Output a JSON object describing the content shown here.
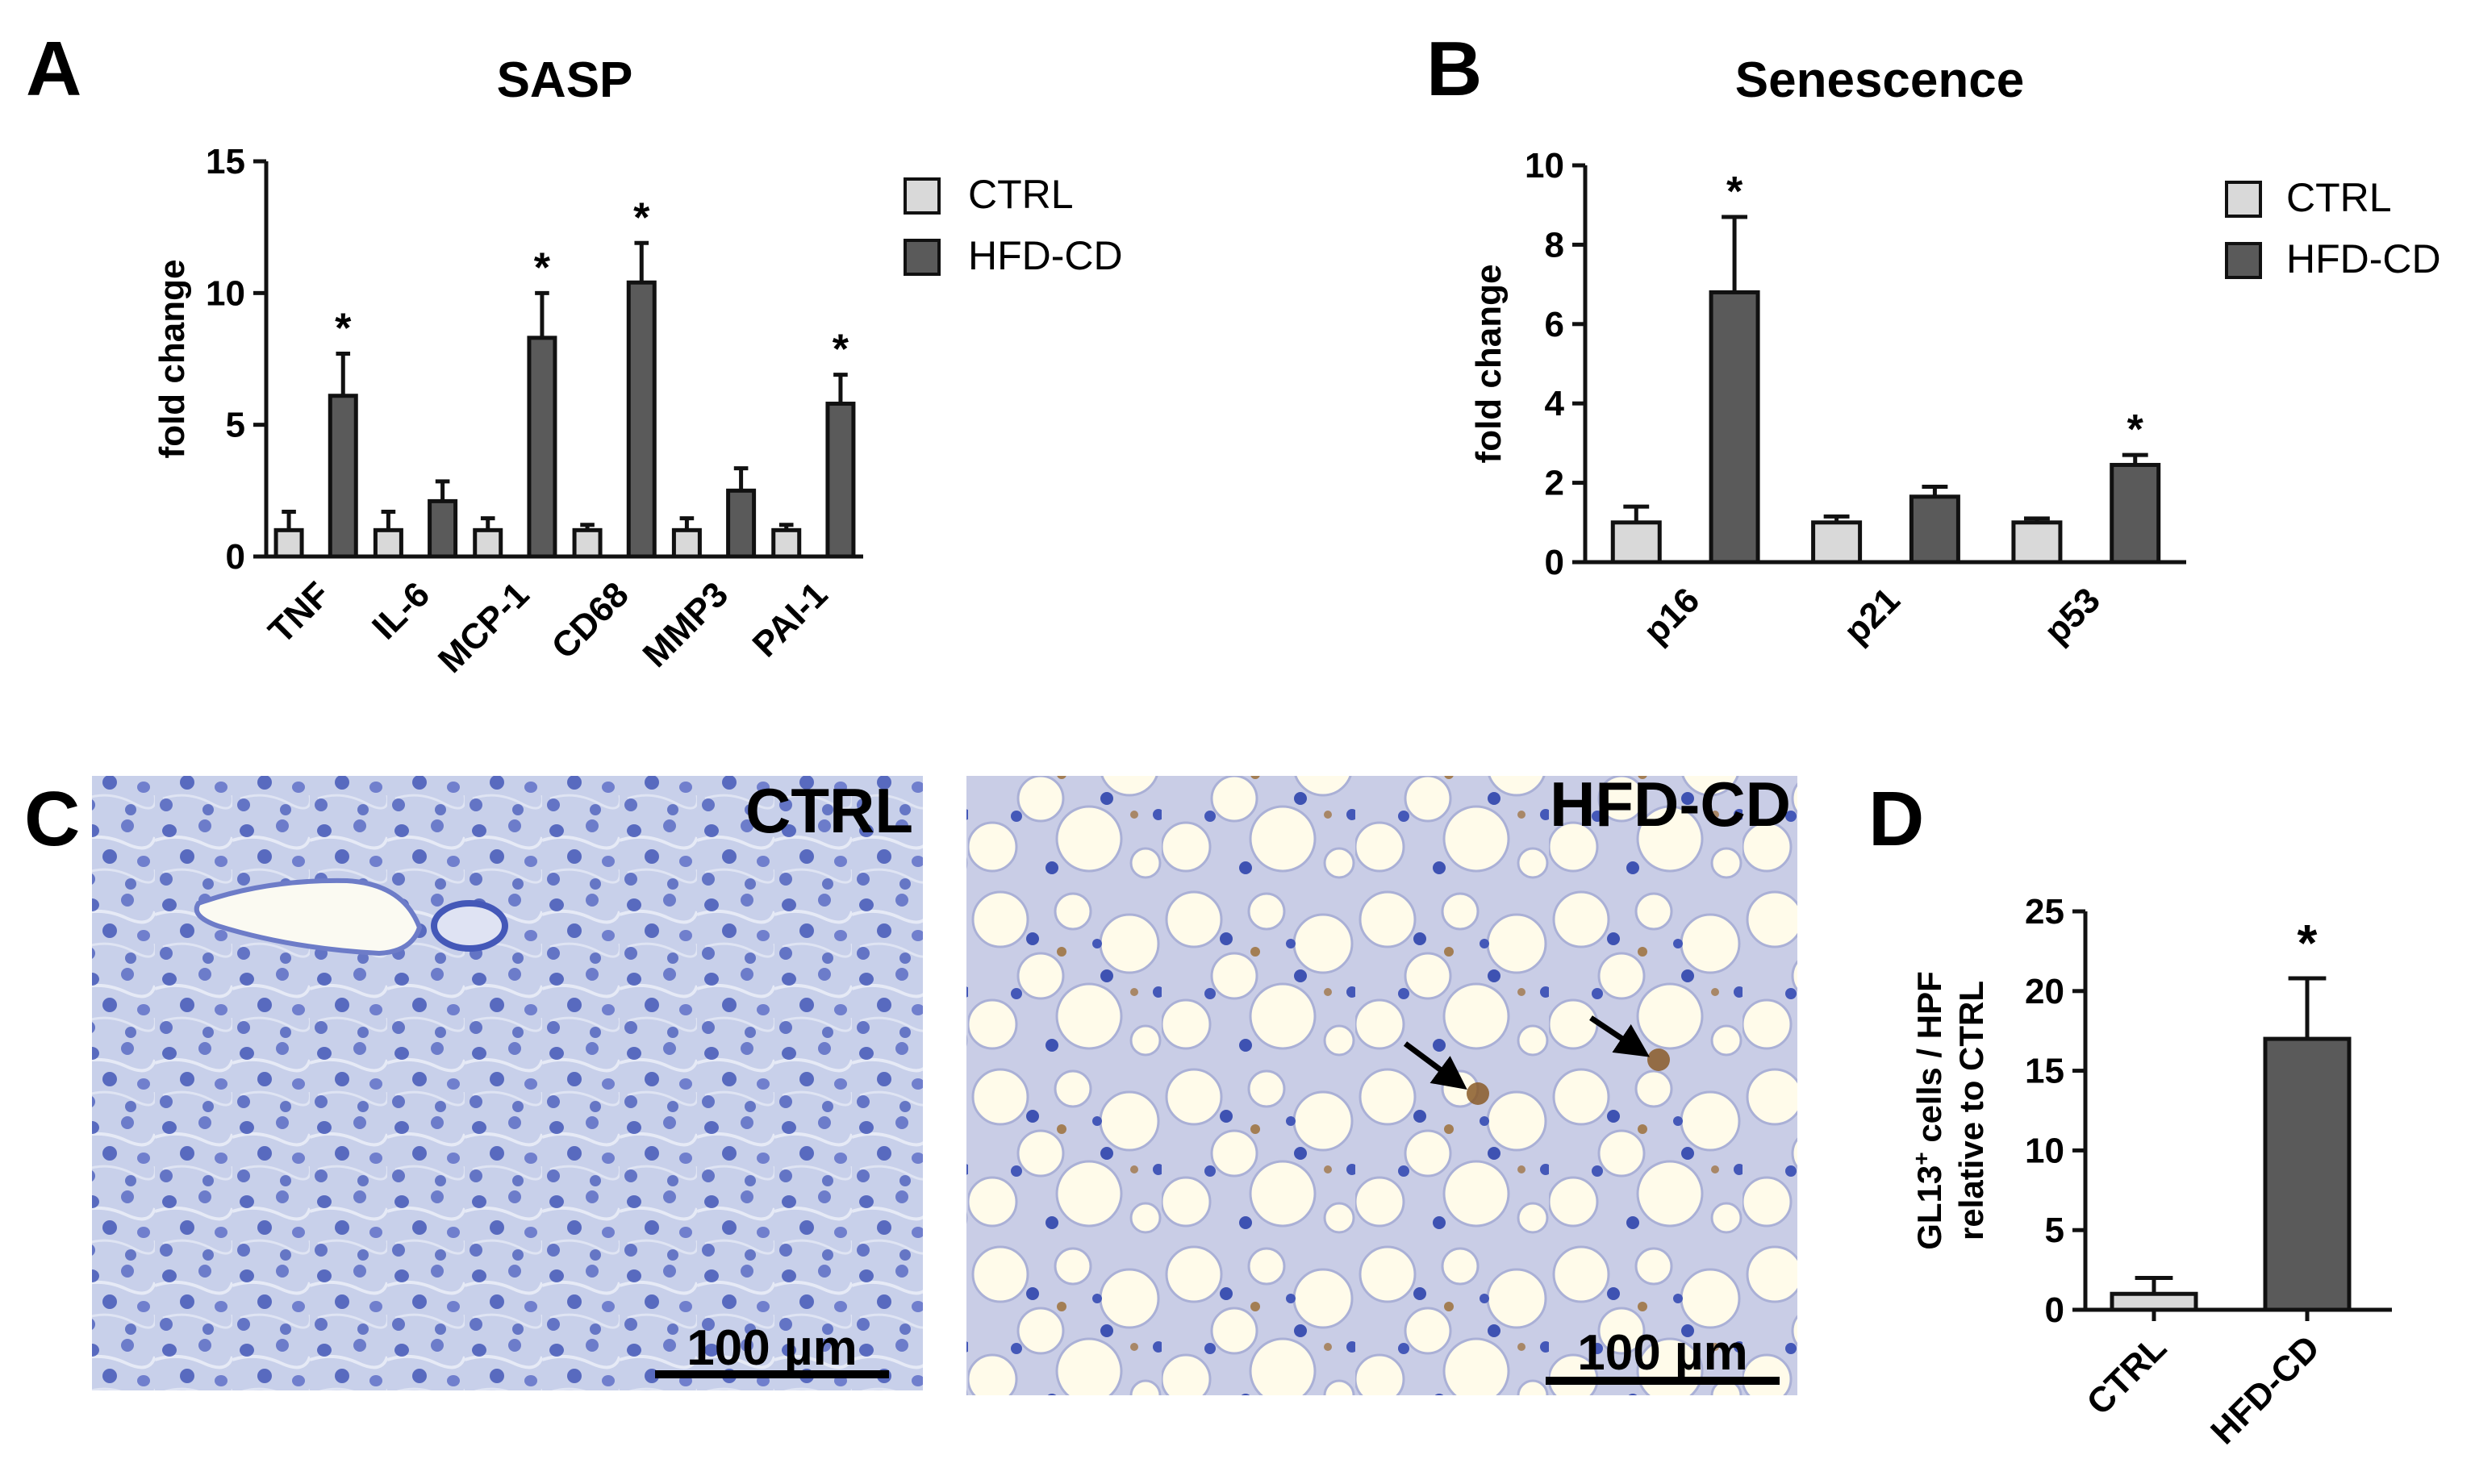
{
  "colors": {
    "ctrl": "#d9d9d9",
    "hfd": "#5a5a5a",
    "axis": "#111111",
    "tissue_ctrl": "#c8d0ea",
    "tissue_hfd": "#c9cde6",
    "nuclei": "#4458b8",
    "fat": "#fffbea",
    "stain": "#9a6a30"
  },
  "panel_letters": {
    "A": "A",
    "B": "B",
    "C": "C",
    "D": "D"
  },
  "legend": {
    "ctrl": "CTRL",
    "hfd": "HFD-CD"
  },
  "micrographs": {
    "ctrl": {
      "label": "CTRL",
      "scalebar": "100 µm"
    },
    "hfd": {
      "label": "HFD-CD",
      "scalebar": "100 µm"
    }
  },
  "chart_data": [
    {
      "id": "A",
      "type": "bar",
      "title": "SASP",
      "ylabel": "fold change",
      "xlabel": "",
      "ylim": [
        0,
        15
      ],
      "yticks": [
        0,
        5,
        10,
        15
      ],
      "categories": [
        "TNF",
        "IL-6",
        "MCP-1",
        "CD68",
        "MMP3",
        "PAI-1"
      ],
      "series": [
        {
          "name": "CTRL",
          "values": [
            1.0,
            1.0,
            1.0,
            1.0,
            1.0,
            1.0
          ],
          "errors": [
            0.7,
            0.7,
            0.45,
            0.2,
            0.45,
            0.2
          ]
        },
        {
          "name": "HFD-CD",
          "values": [
            6.1,
            2.1,
            8.3,
            10.4,
            2.5,
            5.8
          ],
          "errors": [
            1.6,
            0.75,
            1.7,
            1.5,
            0.85,
            1.1
          ]
        }
      ],
      "significant": [
        false,
        true,
        false,
        false,
        false,
        true,
        false,
        true,
        false,
        false,
        false,
        true
      ],
      "significance_marker": "*",
      "legend": "right"
    },
    {
      "id": "B",
      "type": "bar",
      "title": "Senescence",
      "ylabel": "fold change",
      "xlabel": "",
      "ylim": [
        0,
        10
      ],
      "yticks": [
        0,
        2,
        4,
        6,
        8,
        10
      ],
      "categories": [
        "p16",
        "p21",
        "p53"
      ],
      "series": [
        {
          "name": "CTRL",
          "values": [
            1.0,
            1.0,
            1.0
          ],
          "errors": [
            0.4,
            0.15,
            0.1
          ]
        },
        {
          "name": "HFD-CD",
          "values": [
            6.8,
            1.65,
            2.45
          ],
          "errors": [
            1.9,
            0.25,
            0.25
          ]
        }
      ],
      "significant": [
        false,
        true,
        false,
        false,
        false,
        true
      ],
      "significance_marker": "*",
      "legend": "right"
    },
    {
      "id": "D",
      "type": "bar",
      "title": "",
      "ylabel_line1": "GL13",
      "ylabel_sup": "+",
      "ylabel_line1_rest": " cells / HPF",
      "ylabel_line2": "relative to CTRL",
      "xlabel": "",
      "ylim": [
        0,
        25
      ],
      "yticks": [
        0,
        5,
        10,
        15,
        20,
        25
      ],
      "categories": [
        "CTRL",
        "HFD-CD"
      ],
      "values": [
        1.0,
        17.0
      ],
      "errors": [
        1.0,
        3.8
      ],
      "significant": [
        false,
        true
      ],
      "significance_marker": "*"
    }
  ]
}
